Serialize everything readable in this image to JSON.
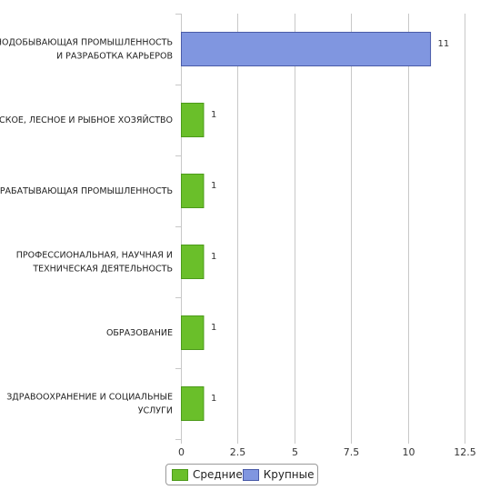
{
  "chart_data": {
    "type": "bar",
    "orientation": "horizontal",
    "categories": [
      [
        "ГОРНОДОБЫВАЮЩАЯ ПРОМЫШЛЕННОСТЬ",
        "И РАЗРАБОТКА КАРЬЕРОВ"
      ],
      [
        "СЕЛЬСКОЕ, ЛЕСНОЕ И РЫБНОЕ ХОЗЯЙСТВО"
      ],
      [
        "ОБРАБАТЫВАЮЩАЯ ПРОМЫШЛЕННОСТЬ"
      ],
      [
        "ПРОФЕССИОНАЛЬНАЯ, НАУЧНАЯ И",
        "ТЕХНИЧЕСКАЯ ДЕЯТЕЛЬНОСТЬ"
      ],
      [
        "ОБРАЗОВАНИЕ"
      ],
      [
        "ЗДРАВООХРАНЕНИЕ И СОЦИАЛЬНЫЕ",
        "УСЛУГИ"
      ]
    ],
    "bars": [
      {
        "series": "Крупные",
        "value": 11,
        "label": "11"
      },
      {
        "series": "Средние",
        "value": 1,
        "label": "1"
      },
      {
        "series": "Средние",
        "value": 1,
        "label": "1"
      },
      {
        "series": "Средние",
        "value": 1,
        "label": "1"
      },
      {
        "series": "Средние",
        "value": 1,
        "label": "1"
      },
      {
        "series": "Средние",
        "value": 1,
        "label": "1"
      }
    ],
    "series": [
      {
        "name": "Средние",
        "color": "#6abf2a",
        "border": "#4c9a1a"
      },
      {
        "name": "Крупные",
        "color": "#8096e0",
        "border": "#4a5ba8"
      }
    ],
    "xlim": [
      0,
      12.5
    ],
    "xticks": [
      0,
      2.5,
      5,
      7.5,
      10,
      12.5
    ],
    "xtick_labels": [
      "0",
      "2.5",
      "5",
      "7.5",
      "10",
      "12.5"
    ],
    "grid": "vertical",
    "legend_position": "bottom"
  },
  "legend": {
    "items": [
      {
        "label": "Средние"
      },
      {
        "label": "Крупные"
      }
    ]
  }
}
